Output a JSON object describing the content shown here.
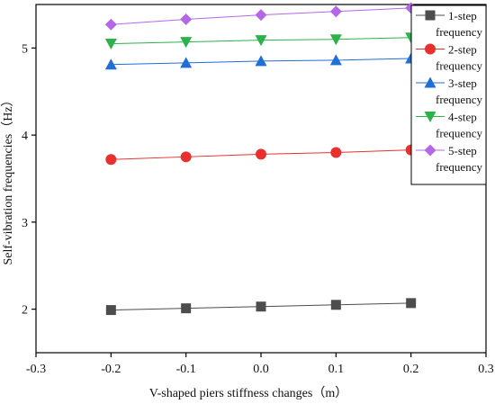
{
  "chart_data": {
    "type": "line",
    "xlabel": "V-shaped piers stiffness changes（m）",
    "ylabel": "Self-vibration frequencies（Hz）",
    "xlim": [
      -0.3,
      0.3
    ],
    "ylim": [
      1.5,
      5.5
    ],
    "xticks": [
      -0.3,
      -0.2,
      -0.1,
      0.0,
      0.1,
      0.2,
      0.3
    ],
    "xtick_labels": [
      "-0.3",
      "-0.2",
      "-0.1",
      "0.0",
      "0.1",
      "0.2",
      "0.3"
    ],
    "yticks": [
      2,
      3,
      4,
      5
    ],
    "ytick_labels": [
      "2",
      "3",
      "4",
      "5"
    ],
    "grid": false,
    "legend_position": "top-right",
    "x": [
      -0.2,
      -0.1,
      0.0,
      0.1,
      0.2
    ],
    "series": [
      {
        "name_lines": [
          "1-step",
          "frequency"
        ],
        "marker": "square",
        "color": "#4d4d4d",
        "values": [
          1.99,
          2.01,
          2.03,
          2.05,
          2.07
        ]
      },
      {
        "name_lines": [
          "2-step",
          "frequency"
        ],
        "marker": "circle",
        "color": "#e8312f",
        "values": [
          3.72,
          3.75,
          3.78,
          3.8,
          3.83
        ]
      },
      {
        "name_lines": [
          "3-step",
          "frequency"
        ],
        "marker": "triangle",
        "color": "#1f6fd6",
        "values": [
          4.81,
          4.83,
          4.85,
          4.86,
          4.88
        ]
      },
      {
        "name_lines": [
          "4-step",
          "frequency"
        ],
        "marker": "triangle-down",
        "color": "#2bb34a",
        "values": [
          5.05,
          5.07,
          5.09,
          5.1,
          5.12
        ]
      },
      {
        "name_lines": [
          "5-step",
          "frequency"
        ],
        "marker": "diamond",
        "color": "#b468e8",
        "values": [
          5.27,
          5.33,
          5.38,
          5.42,
          5.46
        ]
      }
    ]
  }
}
